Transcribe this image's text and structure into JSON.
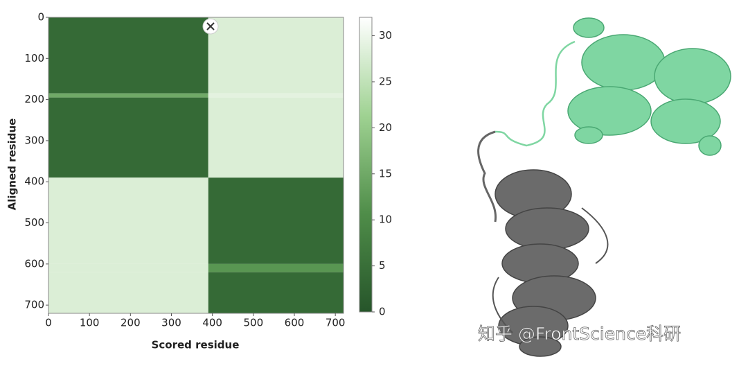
{
  "chart_data": {
    "type": "heatmap",
    "xlabel": "Scored residue",
    "ylabel": "Aligned residue",
    "xlim": [
      0,
      720
    ],
    "ylim": [
      0,
      720
    ],
    "xticks": [
      0,
      100,
      200,
      300,
      400,
      500,
      600,
      700
    ],
    "yticks": [
      0,
      100,
      200,
      300,
      400,
      500,
      600,
      700
    ],
    "x_bins": [
      0,
      390,
      720
    ],
    "y_bins": [
      0,
      185,
      195,
      390,
      600,
      620,
      720
    ],
    "values": [
      [
        4,
        28
      ],
      [
        15,
        29
      ],
      [
        4,
        28
      ],
      [
        28,
        4
      ],
      [
        28,
        12
      ],
      [
        28,
        4
      ]
    ],
    "clim": [
      0,
      32
    ],
    "cticks": [
      0,
      5,
      10,
      15,
      20,
      25,
      30
    ],
    "colormap": [
      "#26552a",
      "#4f8d49",
      "#9fd292",
      "#ffffff"
    ]
  },
  "watermark": "知乎 @FrontScience科研"
}
